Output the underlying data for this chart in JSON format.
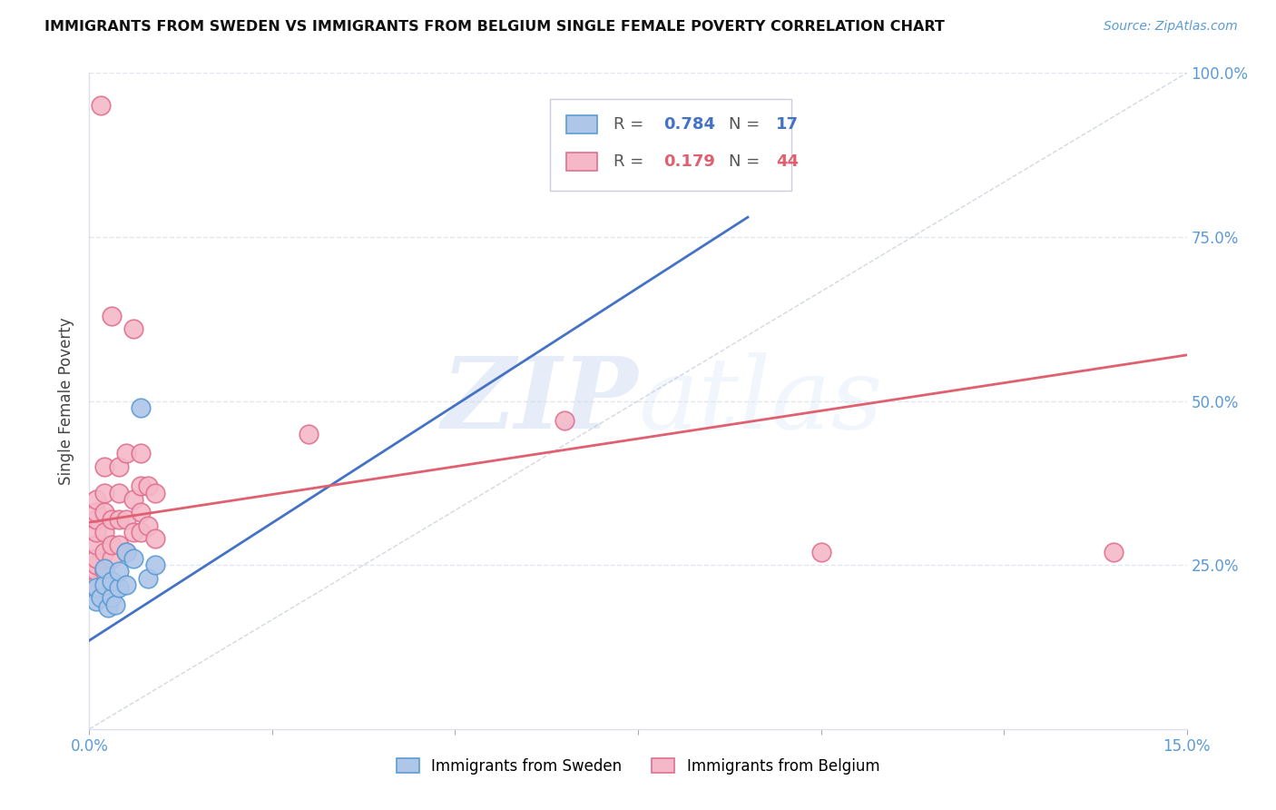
{
  "title": "IMMIGRANTS FROM SWEDEN VS IMMIGRANTS FROM BELGIUM SINGLE FEMALE POVERTY CORRELATION CHART",
  "source": "Source: ZipAtlas.com",
  "ylabel": "Single Female Poverty",
  "xlim": [
    0.0,
    0.15
  ],
  "ylim": [
    0.0,
    1.0
  ],
  "ytick_labels": [
    "25.0%",
    "50.0%",
    "75.0%",
    "100.0%"
  ],
  "yticks": [
    0.25,
    0.5,
    0.75,
    1.0
  ],
  "sweden_color": "#aec6e8",
  "belgium_color": "#f4b8c8",
  "sweden_edge": "#5b9bd5",
  "belgium_edge": "#e07090",
  "sweden_R": 0.784,
  "sweden_N": 17,
  "belgium_R": 0.179,
  "belgium_N": 44,
  "line_blue": "#4472c4",
  "line_pink": "#e06070",
  "watermark_zip": "ZIP",
  "watermark_atlas": "atlas",
  "background_color": "#ffffff",
  "grid_color": "#dde0ea",
  "sweden_x": [
    0.001,
    0.001,
    0.0015,
    0.002,
    0.002,
    0.0025,
    0.003,
    0.003,
    0.0035,
    0.004,
    0.004,
    0.005,
    0.005,
    0.006,
    0.007,
    0.008,
    0.009
  ],
  "sweden_y": [
    0.195,
    0.215,
    0.2,
    0.22,
    0.245,
    0.185,
    0.2,
    0.225,
    0.19,
    0.215,
    0.24,
    0.22,
    0.27,
    0.26,
    0.49,
    0.23,
    0.25
  ],
  "belgium_x": [
    0.001,
    0.001,
    0.001,
    0.001,
    0.001,
    0.001,
    0.001,
    0.001,
    0.001,
    0.001,
    0.0015,
    0.002,
    0.002,
    0.002,
    0.002,
    0.002,
    0.002,
    0.002,
    0.003,
    0.003,
    0.003,
    0.003,
    0.004,
    0.004,
    0.004,
    0.004,
    0.005,
    0.005,
    0.005,
    0.006,
    0.006,
    0.006,
    0.007,
    0.007,
    0.007,
    0.007,
    0.008,
    0.008,
    0.009,
    0.009,
    0.03,
    0.065,
    0.1,
    0.14
  ],
  "belgium_y": [
    0.21,
    0.22,
    0.24,
    0.25,
    0.26,
    0.28,
    0.3,
    0.32,
    0.33,
    0.35,
    0.95,
    0.22,
    0.24,
    0.27,
    0.3,
    0.33,
    0.36,
    0.4,
    0.26,
    0.28,
    0.32,
    0.63,
    0.28,
    0.32,
    0.36,
    0.4,
    0.27,
    0.32,
    0.42,
    0.3,
    0.35,
    0.61,
    0.3,
    0.33,
    0.37,
    0.42,
    0.31,
    0.37,
    0.29,
    0.36,
    0.45,
    0.47,
    0.27,
    0.27
  ],
  "sweden_line_x": [
    0.0,
    0.09
  ],
  "sweden_line_y": [
    0.135,
    0.78
  ],
  "belgium_line_x": [
    0.0,
    0.15
  ],
  "belgium_line_y": [
    0.315,
    0.57
  ]
}
